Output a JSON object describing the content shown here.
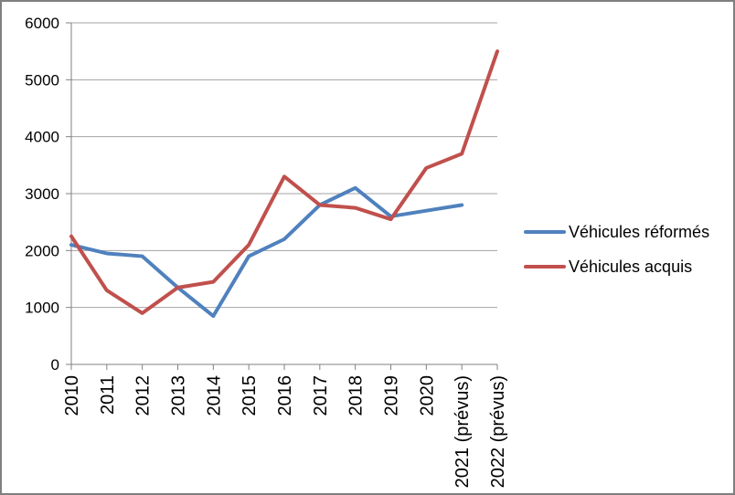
{
  "chart_data": {
    "type": "line",
    "categories": [
      "2010",
      "2011",
      "2012",
      "2013",
      "2014",
      "2015",
      "2016",
      "2017",
      "2018",
      "2019",
      "2020",
      "2021 (prévus)",
      "2022 (prévus)"
    ],
    "series": [
      {
        "name": "Véhicules réformés",
        "color": "#4F81BD",
        "values": [
          2100,
          1950,
          1900,
          1350,
          850,
          1900,
          2200,
          2800,
          3100,
          2600,
          2700,
          2800,
          null
        ]
      },
      {
        "name": "Véhicules acquis",
        "color": "#C0504D",
        "values": [
          2250,
          1300,
          900,
          1350,
          1450,
          2100,
          3300,
          2800,
          2750,
          2550,
          3450,
          3700,
          5500
        ]
      }
    ],
    "title": "",
    "xlabel": "",
    "ylabel": "",
    "ylim": [
      0,
      6000
    ],
    "ytick_step": 1000,
    "ytick_labels": [
      "0",
      "1000",
      "2000",
      "3000",
      "4000",
      "5000",
      "6000"
    ],
    "grid": "horizontal-major",
    "legend_position": "right"
  },
  "colors": {
    "background": "#FFFFFF",
    "border": "#7F7F7F",
    "gridline": "#A3A3A3",
    "axis": "#808080",
    "text": "#000000"
  }
}
